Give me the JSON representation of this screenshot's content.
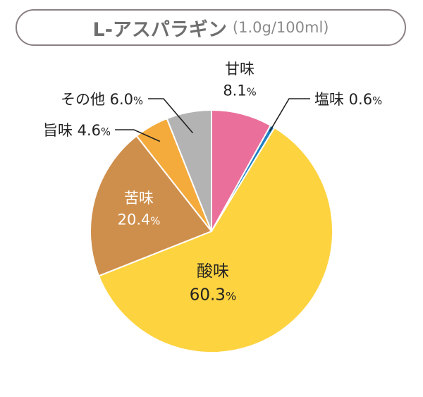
{
  "title": {
    "main": "L-アスパラギン",
    "sub": "(1.0g/100ml)"
  },
  "chart_data": {
    "type": "pie",
    "slices": [
      {
        "label": "甘味",
        "value": 8.1,
        "value_text": "8.1",
        "color": "#ea6f9b"
      },
      {
        "label": "塩味",
        "value": 0.6,
        "value_text": "0.6",
        "color": "#1f80c2"
      },
      {
        "label": "酸味",
        "value": 60.3,
        "value_text": "60.3",
        "color": "#fdd340"
      },
      {
        "label": "苦味",
        "value": 20.4,
        "value_text": "20.4",
        "color": "#cf8f4c"
      },
      {
        "label": "旨味",
        "value": 4.6,
        "value_text": "4.6",
        "color": "#f4ab3c"
      },
      {
        "label": "その他",
        "value": 6.0,
        "value_text": "6.0",
        "color": "#b3b3b3"
      }
    ],
    "unit": "%"
  }
}
